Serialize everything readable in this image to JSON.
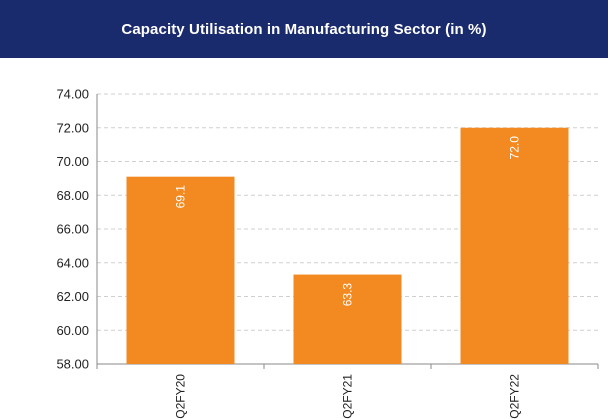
{
  "header": {
    "title": "Capacity Utilisation in Manufacturing Sector (in %)"
  },
  "colors": {
    "header_bg": "#1a2b6d",
    "bar": "#f28a21",
    "grid": "#cfcfcf",
    "axis": "#888888"
  },
  "chart_data": {
    "type": "bar",
    "title": "Capacity Utilisation in Manufacturing Sector (in %)",
    "categories": [
      "Q2FY20",
      "Q2FY21",
      "Q2FY22"
    ],
    "values": [
      69.1,
      63.3,
      72.0
    ],
    "value_labels": [
      "69.1",
      "63.3",
      "72.0"
    ],
    "y_ticks": [
      "58.00",
      "60.00",
      "62.00",
      "64.00",
      "66.00",
      "68.00",
      "70.00",
      "72.00",
      "74.00"
    ],
    "ylim": [
      58,
      74
    ],
    "grid": true,
    "legend": "none",
    "xlabel": "",
    "ylabel": ""
  }
}
